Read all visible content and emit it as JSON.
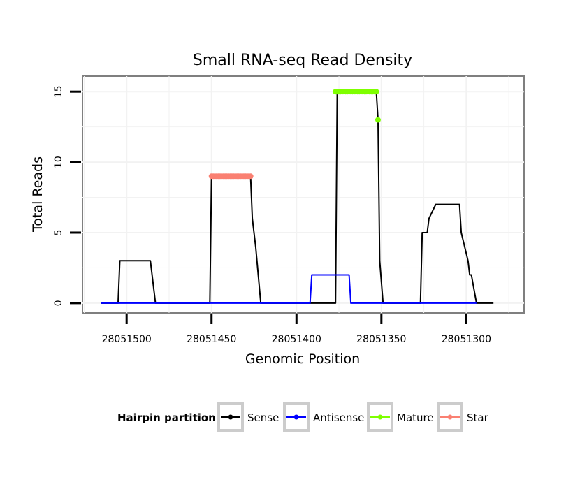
{
  "chart_data": {
    "type": "line",
    "title": "Small RNA-seq Read Density",
    "xlabel": "Genomic Position",
    "ylabel": "Total Reads",
    "x_reversed": true,
    "xlim": [
      28051526,
      28051266
    ],
    "ylim": [
      -0.7,
      16.1
    ],
    "x_ticks": [
      28051500,
      28051450,
      28051400,
      28051350,
      28051300
    ],
    "x_tick_labels": [
      "28051500",
      "28051450",
      "28051400",
      "28051350",
      "28051300"
    ],
    "y_ticks": [
      0,
      5,
      10,
      15
    ],
    "y_tick_labels": [
      "0",
      "5",
      "10",
      "15"
    ],
    "grid": true,
    "legend": {
      "title": "Hairpin partition",
      "placement": "bottom",
      "entries": [
        {
          "label": "Sense",
          "color": "#000000"
        },
        {
          "label": "Antisense",
          "color": "#0000ff"
        },
        {
          "label": "Mature",
          "color": "#7fff00"
        },
        {
          "label": "Star",
          "color": "#fa8072"
        }
      ]
    },
    "series": [
      {
        "name": "Sense",
        "color": "#000000",
        "style": "line",
        "x": [
          28051515,
          28051505,
          28051504,
          28051486,
          28051483,
          28051451,
          28051450,
          28051427,
          28051426,
          28051424,
          28051421,
          28051391,
          28051377,
          28051376,
          28051353,
          28051352,
          28051351,
          28051349,
          28051327,
          28051326,
          28051323,
          28051322,
          28051318,
          28051304,
          28051303,
          28051299,
          28051298,
          28051297,
          28051294,
          28051284
        ],
        "y": [
          0,
          0,
          3,
          3,
          0,
          0,
          9,
          9,
          6,
          4,
          0,
          0,
          0,
          15,
          15,
          13,
          3,
          0,
          0,
          5,
          5,
          6,
          7,
          7,
          5,
          3,
          2,
          2,
          0,
          0
        ]
      },
      {
        "name": "Antisense",
        "color": "#0000ff",
        "style": "line",
        "x": [
          28051515,
          28051392,
          28051391,
          28051380,
          28051369,
          28051368,
          28051294
        ],
        "y": [
          0,
          0,
          2,
          2,
          2,
          0,
          0
        ]
      },
      {
        "name": "Mature",
        "color": "#7fff00",
        "style": "points",
        "x": [
          28051377,
          28051376,
          28051375,
          28051374,
          28051373,
          28051372,
          28051371,
          28051370,
          28051369,
          28051368,
          28051367,
          28051366,
          28051365,
          28051364,
          28051363,
          28051362,
          28051361,
          28051360,
          28051359,
          28051358,
          28051357,
          28051356,
          28051355,
          28051354,
          28051353,
          28051352
        ],
        "y": [
          15,
          15,
          15,
          15,
          15,
          15,
          15,
          15,
          15,
          15,
          15,
          15,
          15,
          15,
          15,
          15,
          15,
          15,
          15,
          15,
          15,
          15,
          15,
          15,
          15,
          13
        ]
      },
      {
        "name": "Star",
        "color": "#fa8072",
        "style": "points",
        "x": [
          28051450,
          28051449,
          28051448,
          28051447,
          28051446,
          28051445,
          28051444,
          28051443,
          28051442,
          28051441,
          28051440,
          28051439,
          28051438,
          28051437,
          28051436,
          28051435,
          28051434,
          28051433,
          28051432,
          28051431,
          28051430,
          28051429,
          28051428,
          28051427
        ],
        "y": [
          9,
          9,
          9,
          9,
          9,
          9,
          9,
          9,
          9,
          9,
          9,
          9,
          9,
          9,
          9,
          9,
          9,
          9,
          9,
          9,
          9,
          9,
          9,
          9
        ]
      }
    ]
  }
}
